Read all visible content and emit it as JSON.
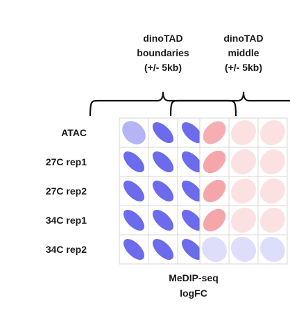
{
  "chart_data": {
    "type": "heatmap",
    "glyph": "ellipse",
    "rows": [
      "ATAC",
      "27C rep1",
      "27C rep2",
      "34C rep1",
      "34C rep2"
    ],
    "panels": [
      {
        "title_lines": [
          "dinoTAD",
          "boundaries",
          "(+/- 5kb)"
        ],
        "values": [
          [
            -0.45,
            -0.9,
            -0.9
          ],
          [
            -0.9,
            -0.9,
            -0.9
          ],
          [
            -0.9,
            -0.9,
            -0.9
          ],
          [
            -0.9,
            -0.9,
            -0.9
          ],
          [
            -0.9,
            -0.9,
            -0.9
          ]
        ]
      },
      {
        "title_lines": [
          "dinoTAD",
          "middle",
          "(+/- 5kb)"
        ],
        "values": [
          [
            0.55,
            0.2,
            0.2
          ],
          [
            0.6,
            0.2,
            0.2
          ],
          [
            0.6,
            0.2,
            0.2
          ],
          [
            0.6,
            0.2,
            0.2
          ],
          [
            -0.2,
            -0.2,
            -0.2
          ]
        ]
      }
    ],
    "xlabel_lines": [
      "MeDIP-seq",
      "logFC"
    ],
    "colors": {
      "negative": "#5b5bea",
      "positive": "#ee6b73",
      "zero": "#ffffff",
      "grid": "#d7d7d7"
    },
    "value_range": [
      -1,
      1
    ]
  }
}
